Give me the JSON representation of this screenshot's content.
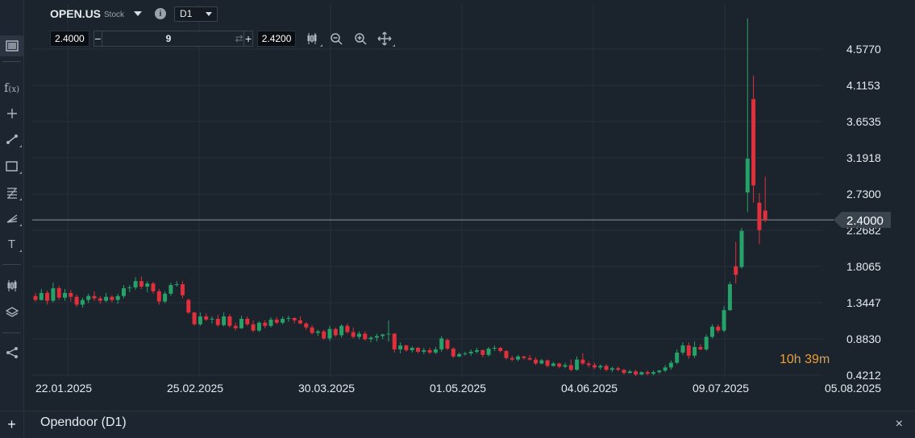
{
  "header": {
    "symbol": "OPEN.US",
    "symbol_type": "Stock",
    "info_glyph": "i",
    "timeframe": "D1"
  },
  "trade": {
    "sell_price": "2.4000",
    "quantity": "9",
    "buy_price": "2.4200",
    "minus_label": "−",
    "plus_label": "+",
    "swap_glyph": "⇄"
  },
  "toolbar_icons": [
    "chart-type-icon",
    "function-icon",
    "crosshair-icon",
    "trendline-icon",
    "rectangle-icon",
    "fibonacci-icon",
    "pitchfork-icon",
    "text-icon",
    "indicators-icon",
    "layers-icon",
    "share-icon"
  ],
  "countdown": {
    "hours": "10",
    "h": "h",
    "minutes": "39",
    "m": "m"
  },
  "current_price": "2.4000",
  "panel": {
    "title": "Opendoor (D1)",
    "add": "+",
    "close": "×"
  },
  "colors": {
    "up": "#26a269",
    "down": "#e0303c",
    "background": "#1b232c",
    "price_line": "#8d98a3"
  },
  "chart_data": {
    "type": "candlestick",
    "y_ticks": [
      "4.5770",
      "4.1153",
      "3.6535",
      "3.1918",
      "2.7300",
      "2.2682",
      "1.8065",
      "1.3447",
      "0.8830",
      "0.4212"
    ],
    "x_ticks": [
      "22.01.2025",
      "25.02.2025",
      "30.03.2025",
      "01.05.2025",
      "04.06.2025",
      "09.07.2025",
      "05.08.2025"
    ],
    "ylim": [
      0.36,
      4.88
    ],
    "grid": true,
    "candles_ohlc": [
      [
        1.43,
        1.47,
        1.36,
        1.38
      ],
      [
        1.38,
        1.52,
        1.37,
        1.47
      ],
      [
        1.47,
        1.5,
        1.32,
        1.37
      ],
      [
        1.37,
        1.6,
        1.35,
        1.53
      ],
      [
        1.53,
        1.56,
        1.38,
        1.41
      ],
      [
        1.41,
        1.52,
        1.37,
        1.47
      ],
      [
        1.47,
        1.51,
        1.36,
        1.42
      ],
      [
        1.42,
        1.45,
        1.29,
        1.32
      ],
      [
        1.32,
        1.41,
        1.28,
        1.38
      ],
      [
        1.38,
        1.46,
        1.34,
        1.43
      ],
      [
        1.43,
        1.49,
        1.37,
        1.4
      ],
      [
        1.4,
        1.43,
        1.33,
        1.37
      ],
      [
        1.37,
        1.47,
        1.35,
        1.42
      ],
      [
        1.42,
        1.44,
        1.35,
        1.38
      ],
      [
        1.38,
        1.46,
        1.33,
        1.43
      ],
      [
        1.43,
        1.57,
        1.4,
        1.53
      ],
      [
        1.53,
        1.57,
        1.48,
        1.54
      ],
      [
        1.54,
        1.67,
        1.51,
        1.62
      ],
      [
        1.62,
        1.68,
        1.52,
        1.55
      ],
      [
        1.55,
        1.62,
        1.48,
        1.59
      ],
      [
        1.59,
        1.61,
        1.46,
        1.49
      ],
      [
        1.49,
        1.52,
        1.32,
        1.36
      ],
      [
        1.36,
        1.49,
        1.34,
        1.46
      ],
      [
        1.46,
        1.6,
        1.43,
        1.57
      ],
      [
        1.57,
        1.62,
        1.55,
        1.58
      ],
      [
        1.58,
        1.62,
        1.4,
        1.44
      ],
      [
        1.38,
        1.4,
        1.2,
        1.22
      ],
      [
        1.22,
        1.23,
        1.05,
        1.07
      ],
      [
        1.07,
        1.22,
        1.05,
        1.17
      ],
      [
        1.17,
        1.21,
        1.11,
        1.13
      ],
      [
        1.13,
        1.17,
        1.08,
        1.14
      ],
      [
        1.14,
        1.19,
        1.04,
        1.06
      ],
      [
        1.06,
        1.22,
        1.04,
        1.17
      ],
      [
        1.17,
        1.2,
        1.03,
        1.05
      ],
      [
        1.05,
        1.09,
        0.99,
        1.02
      ],
      [
        1.02,
        1.18,
        1.01,
        1.14
      ],
      [
        1.14,
        1.17,
        1.05,
        1.07
      ],
      [
        1.07,
        1.12,
        0.97,
        0.99
      ],
      [
        0.99,
        1.11,
        0.97,
        1.09
      ],
      [
        1.09,
        1.12,
        1.02,
        1.05
      ],
      [
        1.05,
        1.16,
        1.03,
        1.13
      ],
      [
        1.13,
        1.16,
        1.07,
        1.09
      ],
      [
        1.09,
        1.17,
        1.07,
        1.14
      ],
      [
        1.14,
        1.18,
        1.1,
        1.15
      ],
      [
        1.15,
        1.16,
        1.08,
        1.12
      ],
      [
        1.12,
        1.17,
        1.07,
        1.08
      ],
      [
        1.08,
        1.1,
        1.0,
        1.03
      ],
      [
        1.03,
        1.06,
        0.94,
        0.96
      ],
      [
        0.96,
        1.0,
        0.92,
        0.98
      ],
      [
        0.98,
        1.0,
        0.87,
        0.89
      ],
      [
        0.89,
        1.05,
        0.86,
        1.01
      ],
      [
        1.01,
        1.03,
        0.91,
        0.93
      ],
      [
        0.93,
        1.07,
        0.9,
        1.05
      ],
      [
        1.05,
        1.08,
        0.95,
        0.97
      ],
      [
        0.97,
        1.03,
        0.89,
        0.91
      ],
      [
        0.91,
        0.98,
        0.88,
        0.95
      ],
      [
        0.95,
        0.98,
        0.86,
        0.88
      ],
      [
        0.88,
        0.92,
        0.84,
        0.9
      ],
      [
        0.9,
        0.95,
        0.85,
        0.92
      ],
      [
        0.92,
        0.95,
        0.88,
        0.94
      ],
      [
        0.94,
        1.12,
        0.85,
        0.95
      ],
      [
        0.95,
        0.96,
        0.71,
        0.75
      ],
      [
        0.75,
        0.84,
        0.7,
        0.8
      ],
      [
        0.8,
        0.81,
        0.72,
        0.74
      ],
      [
        0.74,
        0.79,
        0.71,
        0.77
      ],
      [
        0.77,
        0.78,
        0.7,
        0.72
      ],
      [
        0.72,
        0.77,
        0.69,
        0.74
      ],
      [
        0.74,
        0.77,
        0.69,
        0.71
      ],
      [
        0.71,
        0.78,
        0.69,
        0.75
      ],
      [
        0.75,
        0.92,
        0.72,
        0.89
      ],
      [
        0.87,
        0.89,
        0.74,
        0.76
      ],
      [
        0.76,
        0.78,
        0.64,
        0.66
      ],
      [
        0.66,
        0.71,
        0.65,
        0.69
      ],
      [
        0.69,
        0.72,
        0.67,
        0.7
      ],
      [
        0.7,
        0.75,
        0.67,
        0.72
      ],
      [
        0.72,
        0.77,
        0.7,
        0.74
      ],
      [
        0.74,
        0.75,
        0.65,
        0.68
      ],
      [
        0.68,
        0.78,
        0.66,
        0.76
      ],
      [
        0.76,
        0.8,
        0.73,
        0.77
      ],
      [
        0.77,
        0.78,
        0.71,
        0.73
      ],
      [
        0.73,
        0.74,
        0.62,
        0.64
      ],
      [
        0.64,
        0.67,
        0.6,
        0.62
      ],
      [
        0.62,
        0.68,
        0.6,
        0.66
      ],
      [
        0.66,
        0.67,
        0.62,
        0.64
      ],
      [
        0.64,
        0.68,
        0.61,
        0.62
      ],
      [
        0.62,
        0.65,
        0.55,
        0.57
      ],
      [
        0.57,
        0.63,
        0.56,
        0.61
      ],
      [
        0.61,
        0.62,
        0.52,
        0.54
      ],
      [
        0.54,
        0.59,
        0.53,
        0.57
      ],
      [
        0.57,
        0.58,
        0.51,
        0.53
      ],
      [
        0.53,
        0.58,
        0.51,
        0.55
      ],
      [
        0.55,
        0.62,
        0.47,
        0.49
      ],
      [
        0.49,
        0.66,
        0.48,
        0.62
      ],
      [
        0.62,
        0.7,
        0.55,
        0.57
      ],
      [
        0.57,
        0.6,
        0.52,
        0.55
      ],
      [
        0.55,
        0.58,
        0.5,
        0.52
      ],
      [
        0.52,
        0.56,
        0.49,
        0.54
      ],
      [
        0.54,
        0.56,
        0.47,
        0.49
      ],
      [
        0.49,
        0.53,
        0.46,
        0.51
      ],
      [
        0.51,
        0.53,
        0.47,
        0.49
      ],
      [
        0.49,
        0.5,
        0.43,
        0.45
      ],
      [
        0.45,
        0.49,
        0.44,
        0.47
      ],
      [
        0.47,
        0.49,
        0.41,
        0.43
      ],
      [
        0.43,
        0.47,
        0.42,
        0.46
      ],
      [
        0.46,
        0.48,
        0.42,
        0.44
      ],
      [
        0.44,
        0.48,
        0.42,
        0.46
      ],
      [
        0.46,
        0.49,
        0.44,
        0.48
      ],
      [
        0.48,
        0.55,
        0.46,
        0.52
      ],
      [
        0.52,
        0.61,
        0.49,
        0.58
      ],
      [
        0.58,
        0.75,
        0.56,
        0.71
      ],
      [
        0.71,
        0.84,
        0.68,
        0.8
      ],
      [
        0.8,
        0.84,
        0.63,
        0.67
      ],
      [
        0.67,
        0.85,
        0.64,
        0.78
      ],
      [
        0.78,
        0.82,
        0.74,
        0.75
      ],
      [
        0.75,
        0.94,
        0.73,
        0.91
      ],
      [
        0.91,
        1.07,
        0.89,
        1.04
      ],
      [
        1.04,
        1.07,
        0.96,
        0.99
      ],
      [
        0.99,
        1.3,
        0.97,
        1.25
      ],
      [
        1.25,
        1.61,
        1.24,
        1.58
      ],
      [
        1.81,
        2.12,
        1.59,
        1.7
      ],
      [
        1.8,
        2.3,
        1.78,
        2.26
      ],
      [
        2.75,
        4.97,
        2.5,
        3.18
      ],
      [
        3.94,
        4.24,
        2.62,
        2.84
      ],
      [
        2.62,
        2.74,
        2.09,
        2.27
      ],
      [
        2.52,
        2.95,
        2.37,
        2.4
      ]
    ]
  }
}
